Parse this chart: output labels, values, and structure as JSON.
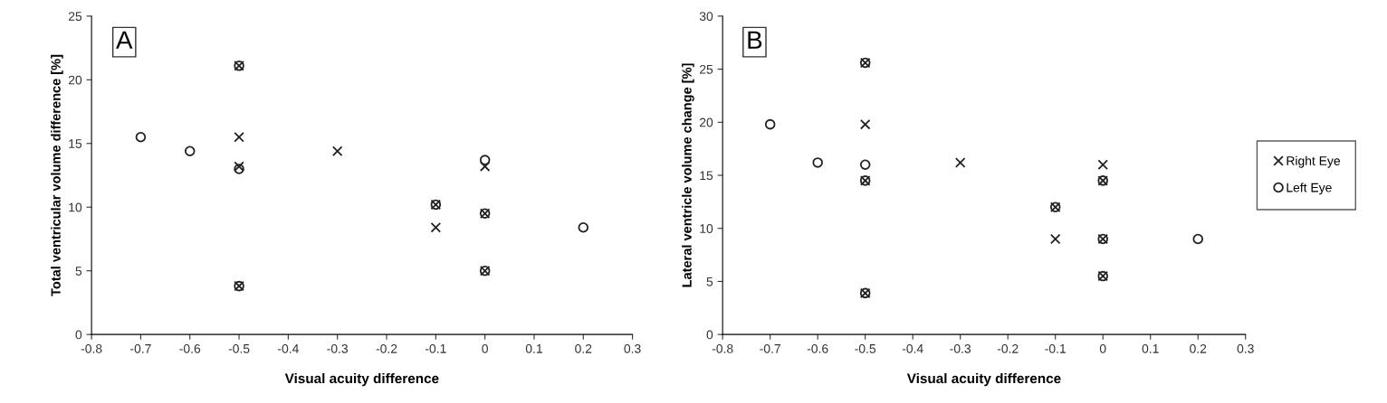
{
  "chart_data": [
    {
      "type": "scatter",
      "xlabel": "Visual acuity difference",
      "ylabel": "Total ventricular volume difference [%]",
      "annotations": [
        "A"
      ],
      "xlim": [
        -0.8,
        0.3
      ],
      "xticks": [
        {
          "value": -0.8,
          "label": "-0.8"
        },
        {
          "value": -0.7,
          "label": "-0.7"
        },
        {
          "value": -0.6,
          "label": "-0.6"
        },
        {
          "value": -0.5,
          "label": "-0.5"
        },
        {
          "value": -0.4,
          "label": "-0.4"
        },
        {
          "value": -0.3,
          "label": "-0.3"
        },
        {
          "value": -0.2,
          "label": "-0.2"
        },
        {
          "value": -0.1,
          "label": "-0.1"
        },
        0,
        0.1,
        0.2,
        0.3
      ],
      "ylim": [
        0,
        25
      ],
      "yticks": [
        0,
        5,
        10,
        15,
        20,
        25
      ],
      "grid": false,
      "legend": false,
      "series": [
        {
          "color": "#222222",
          "x": [
            -0.5,
            -0.5,
            -0.5,
            -0.5,
            -0.3,
            -0.1,
            -0.1,
            0,
            0,
            0
          ],
          "values": [
            21.1,
            15.5,
            13.2,
            3.8,
            14.4,
            10.2,
            8.4,
            13.2,
            9.5,
            5.0
          ]
        },
        {
          "color": "#222222",
          "x": [
            -0.7,
            -0.6,
            -0.5,
            -0.5,
            -0.5,
            -0.1,
            0,
            0,
            0,
            0.2
          ],
          "values": [
            15.5,
            14.4,
            21.1,
            13.0,
            3.8,
            10.2,
            13.7,
            9.5,
            5.0,
            8.4
          ]
        }
      ]
    },
    {
      "type": "scatter",
      "xlabel": "Visual acuity difference",
      "ylabel": "Lateral ventricle volume change [%]",
      "annotations": [
        "B"
      ],
      "xlim": [
        -0.8,
        0.3
      ],
      "xticks": [
        {
          "value": -0.8,
          "label": "-0.8"
        },
        {
          "value": -0.7,
          "label": "-0.7"
        },
        {
          "value": -0.6,
          "label": "-0.6"
        },
        {
          "value": -0.5,
          "label": "-0.5"
        },
        {
          "value": -0.4,
          "label": "-0.4"
        },
        {
          "value": -0.3,
          "label": "-0.3"
        },
        {
          "value": -0.2,
          "label": "-0.2"
        },
        {
          "value": -0.1,
          "label": "-0.1"
        },
        0,
        0.1,
        0.2,
        0.3
      ],
      "ylim": [
        0,
        30
      ],
      "yticks": [
        0,
        5,
        10,
        15,
        20,
        25,
        30
      ],
      "grid": false,
      "legend": "right",
      "series": [
        {
          "name": "Right Eye",
          "color": "#222222",
          "x": [
            -0.5,
            -0.5,
            -0.5,
            -0.5,
            -0.3,
            -0.1,
            -0.1,
            0,
            0,
            0,
            0
          ],
          "values": [
            25.6,
            19.8,
            14.5,
            3.9,
            16.2,
            12.0,
            9.0,
            16.0,
            14.5,
            9.0,
            5.5
          ]
        },
        {
          "name": "Left Eye",
          "color": "#222222",
          "x": [
            -0.7,
            -0.6,
            -0.5,
            -0.5,
            -0.5,
            -0.5,
            -0.1,
            0,
            0,
            0,
            0.2
          ],
          "values": [
            19.8,
            16.2,
            25.6,
            16.0,
            14.5,
            3.9,
            12.0,
            14.5,
            9.0,
            5.5,
            9.0
          ]
        }
      ]
    }
  ]
}
